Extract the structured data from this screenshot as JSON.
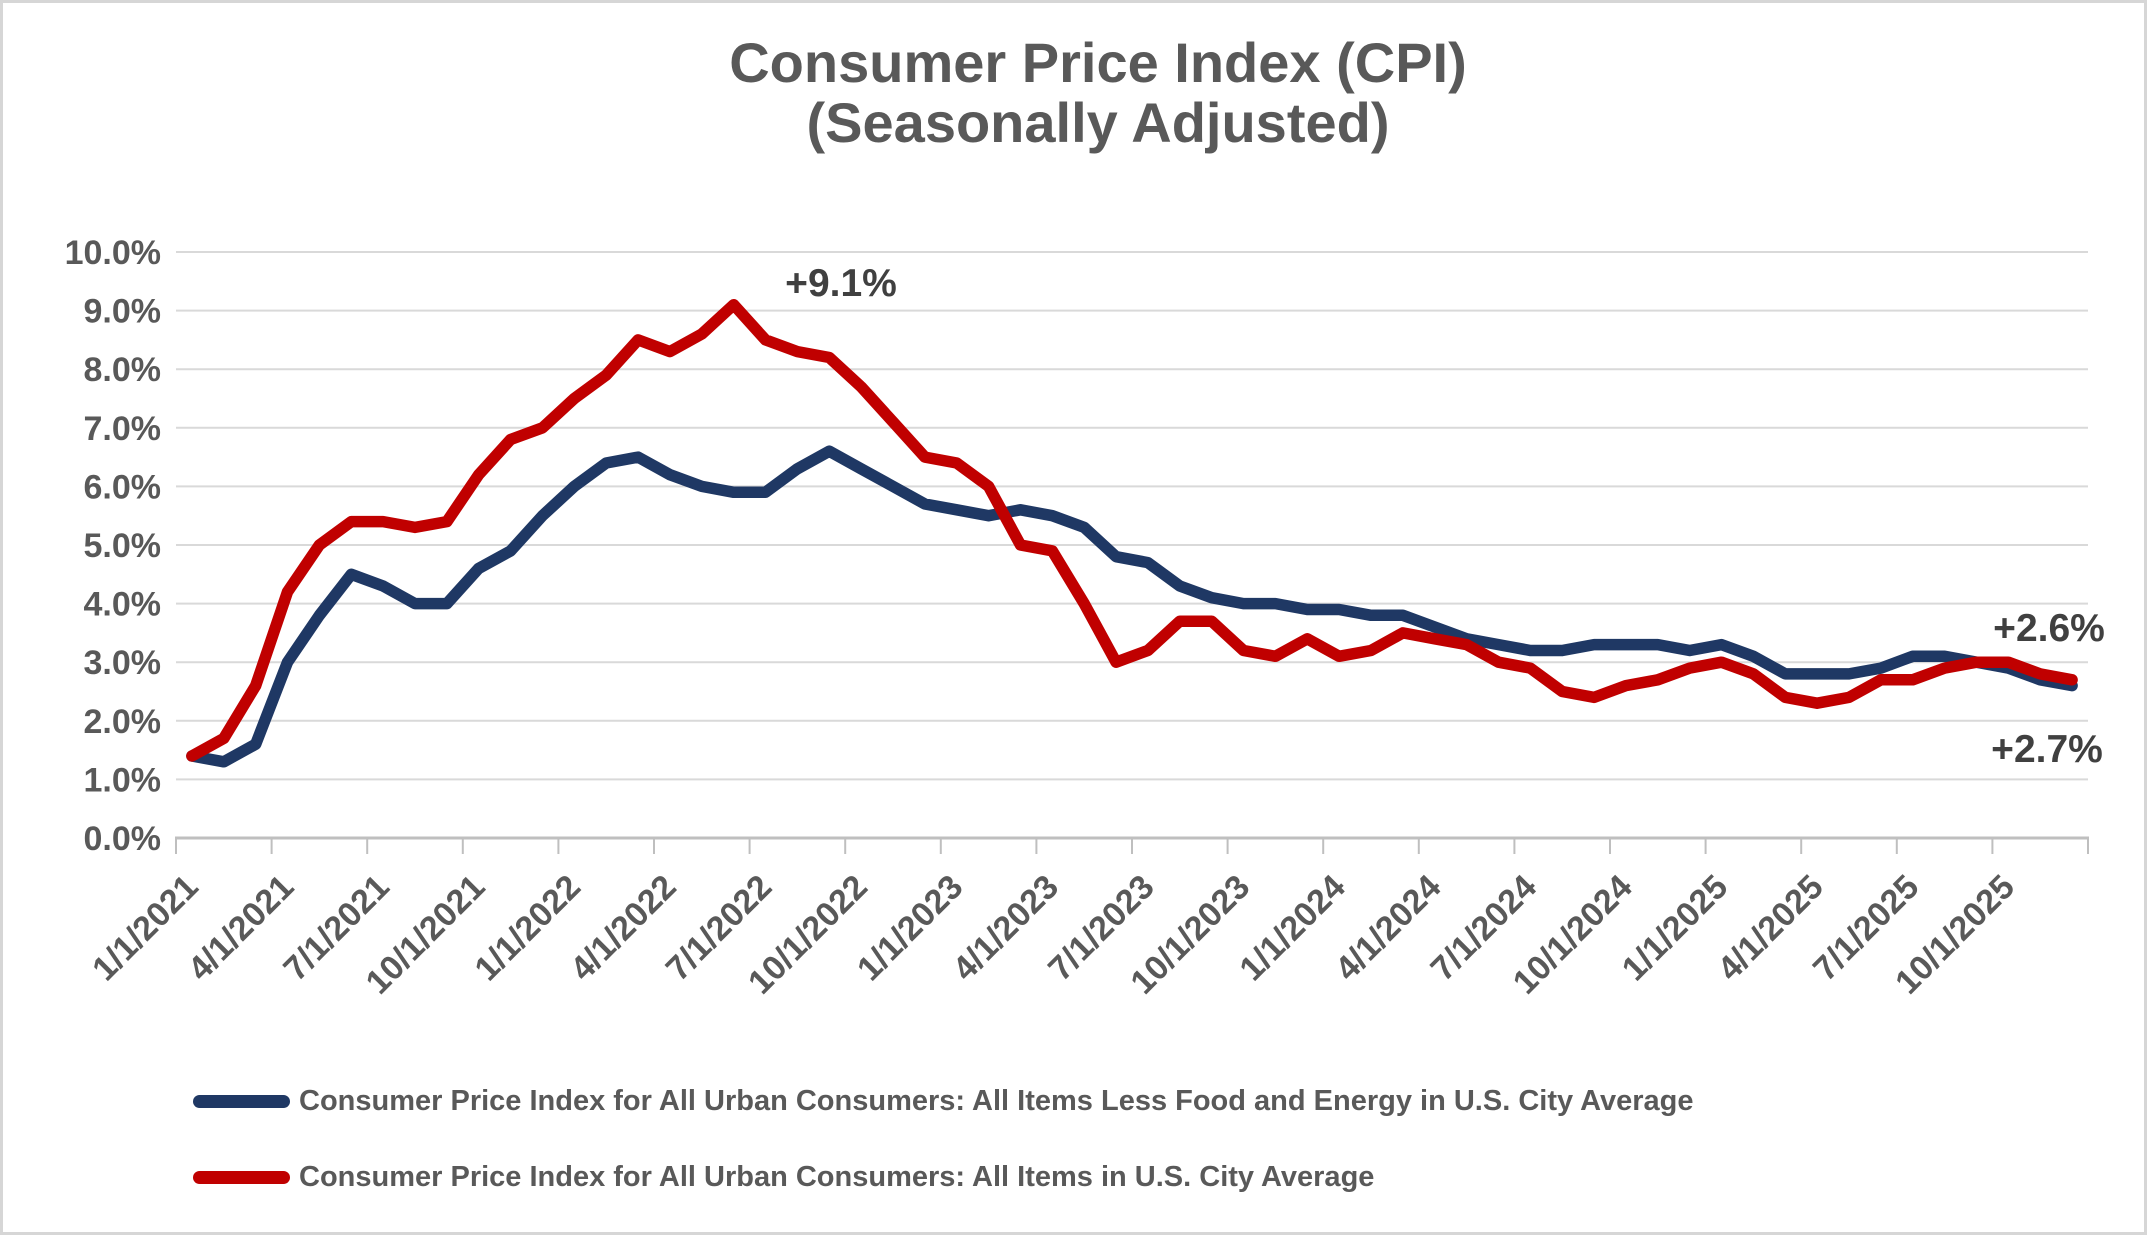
{
  "title": {
    "line1": "Consumer Price Index (CPI)",
    "line2": "(Seasonally Adjusted)"
  },
  "colors": {
    "core_series": "#1f3864",
    "all_items_series": "#c00000",
    "grid": "#d9d9d9",
    "axis": "#bfbfbf",
    "axis_text": "#595959",
    "title_text": "#595959",
    "annotation_text": "#404040",
    "border": "#d6d6d6"
  },
  "chart_data": {
    "type": "line",
    "title": "Consumer Price Index (CPI) (Seasonally Adjusted)",
    "frequency": "monthly",
    "x_start": "1/1/2021",
    "x_end": "12/1/2025",
    "ylim": [
      0,
      10
    ],
    "grid": "horizontal",
    "legend_position": "bottom-left",
    "y_tick_labels": [
      "0.0%",
      "1.0%",
      "2.0%",
      "3.0%",
      "4.0%",
      "5.0%",
      "6.0%",
      "7.0%",
      "8.0%",
      "9.0%",
      "10.0%"
    ],
    "x_tick_labels": [
      "1/1/2021",
      "4/1/2021",
      "7/1/2021",
      "10/1/2021",
      "1/1/2022",
      "4/1/2022",
      "7/1/2022",
      "10/1/2022",
      "1/1/2023",
      "4/1/2023",
      "7/1/2023",
      "10/1/2023",
      "1/1/2024",
      "4/1/2024",
      "7/1/2024",
      "10/1/2024",
      "1/1/2025",
      "4/1/2025",
      "7/1/2025",
      "10/1/2025"
    ],
    "series": [
      {
        "id": "core-cpi",
        "name": "Consumer Price Index for All Urban Consumers: All Items Less Food and Energy in U.S. City Average",
        "color": "#1f3864",
        "values": [
          1.4,
          1.3,
          1.6,
          3.0,
          3.8,
          4.5,
          4.3,
          4.0,
          4.0,
          4.6,
          4.9,
          5.5,
          6.0,
          6.4,
          6.5,
          6.2,
          6.0,
          5.9,
          5.9,
          6.3,
          6.6,
          6.3,
          6.0,
          5.7,
          5.6,
          5.5,
          5.6,
          5.5,
          5.3,
          4.8,
          4.7,
          4.3,
          4.1,
          4.0,
          4.0,
          3.9,
          3.9,
          3.8,
          3.8,
          3.6,
          3.4,
          3.3,
          3.2,
          3.2,
          3.3,
          3.3,
          3.3,
          3.2,
          3.3,
          3.1,
          2.8,
          2.8,
          2.8,
          2.9,
          3.1,
          3.1,
          3.0,
          2.9,
          2.7,
          2.6
        ]
      },
      {
        "id": "all-items-cpi",
        "name": "Consumer Price Index for All Urban Consumers: All Items in U.S. City Average",
        "color": "#c00000",
        "values": [
          1.4,
          1.7,
          2.6,
          4.2,
          5.0,
          5.4,
          5.4,
          5.3,
          5.4,
          6.2,
          6.8,
          7.0,
          7.5,
          7.9,
          8.5,
          8.3,
          8.6,
          9.1,
          8.5,
          8.3,
          8.2,
          7.7,
          7.1,
          6.5,
          6.4,
          6.0,
          5.0,
          4.9,
          4.0,
          3.0,
          3.2,
          3.7,
          3.7,
          3.2,
          3.1,
          3.4,
          3.1,
          3.2,
          3.5,
          3.4,
          3.3,
          3.0,
          2.9,
          2.5,
          2.4,
          2.6,
          2.7,
          2.9,
          3.0,
          2.8,
          2.4,
          2.3,
          2.4,
          2.7,
          2.7,
          2.9,
          3.0,
          3.0,
          2.8,
          2.7
        ]
      }
    ],
    "annotations": [
      {
        "label": "+9.1%",
        "series": "all-items-cpi",
        "point": "6/1/2022",
        "value": 9.1
      },
      {
        "label": "+2.6%",
        "series": "core-cpi",
        "point": "12/1/2025",
        "value": 2.6
      },
      {
        "label": "+2.7%",
        "series": "all-items-cpi",
        "point": "12/1/2025",
        "value": 2.7
      }
    ]
  }
}
